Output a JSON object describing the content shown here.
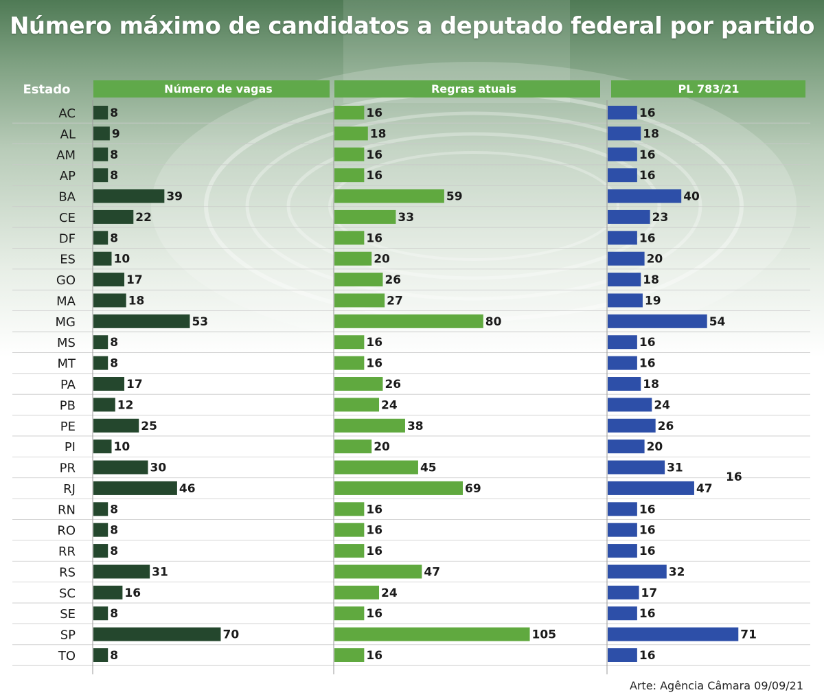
{
  "title": "Número máximo de candidatos a deputado federal por partido",
  "credit": "Arte: Agência Câmara 09/09/21",
  "colors": {
    "vagas": "#24472d",
    "atuais": "#60a93f",
    "pl": "#2d4fa8",
    "header_bg": "#60a94a"
  },
  "chart_data": {
    "type": "bar",
    "orientation": "horizontal",
    "title": "Número máximo de candidatos a deputado federal por partido",
    "category_header": "Estado",
    "categories": [
      "AC",
      "AL",
      "AM",
      "AP",
      "BA",
      "CE",
      "DF",
      "ES",
      "GO",
      "MA",
      "MG",
      "MS",
      "MT",
      "PA",
      "PB",
      "PE",
      "PI",
      "PR",
      "RJ",
      "RN",
      "RO",
      "RR",
      "RS",
      "SC",
      "SE",
      "SP",
      "TO"
    ],
    "series": [
      {
        "name": "Número de vagas",
        "color": "#24472d",
        "values": [
          8,
          9,
          8,
          8,
          39,
          22,
          8,
          10,
          17,
          18,
          53,
          8,
          8,
          17,
          12,
          25,
          10,
          30,
          46,
          8,
          8,
          8,
          31,
          16,
          8,
          70,
          8
        ]
      },
      {
        "name": "Regras atuais",
        "color": "#60a93f",
        "values": [
          16,
          18,
          16,
          16,
          59,
          33,
          16,
          20,
          26,
          27,
          80,
          16,
          16,
          26,
          24,
          38,
          20,
          45,
          69,
          16,
          16,
          16,
          47,
          24,
          16,
          105,
          16
        ]
      },
      {
        "name": "PL 783/21",
        "color": "#2d4fa8",
        "values": [
          16,
          18,
          16,
          16,
          40,
          23,
          16,
          20,
          18,
          19,
          54,
          16,
          16,
          18,
          24,
          26,
          20,
          31,
          47,
          16,
          16,
          16,
          32,
          17,
          16,
          71,
          16
        ]
      }
    ],
    "annotations": [
      "16"
    ],
    "grid": false
  }
}
